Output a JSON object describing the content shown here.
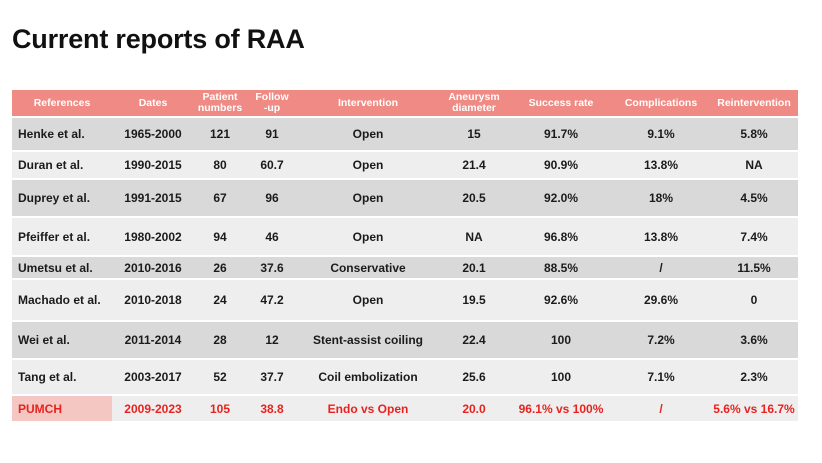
{
  "slide": {
    "title": "Current reports of RAA"
  },
  "table": {
    "headers": [
      {
        "line1": "References",
        "line2": ""
      },
      {
        "line1": "Dates",
        "line2": ""
      },
      {
        "line1": "Patient",
        "line2": "numbers"
      },
      {
        "line1": "Follow",
        "line2": "-up"
      },
      {
        "line1": "Intervention",
        "line2": ""
      },
      {
        "line1": "Aneurysm",
        "line2": "diameter"
      },
      {
        "line1": "Success rate",
        "line2": ""
      },
      {
        "line1": "Complications",
        "line2": ""
      },
      {
        "line1": "Reintervention",
        "line2": ""
      }
    ],
    "rows": [
      {
        "reference": "Henke et al.",
        "dates": "1965-2000",
        "patients": "121",
        "followup": "91",
        "intervention": "Open",
        "diameter": "15",
        "success": "91.7%",
        "complications": "9.1%",
        "reintervention": "5.8%"
      },
      {
        "reference": "Duran et al.",
        "dates": "1990-2015",
        "patients": "80",
        "followup": "60.7",
        "intervention": "Open",
        "diameter": "21.4",
        "success": "90.9%",
        "complications": "13.8%",
        "reintervention": "NA"
      },
      {
        "reference": "Duprey et al.",
        "dates": "1991-2015",
        "patients": "67",
        "followup": "96",
        "intervention": "Open",
        "diameter": "20.5",
        "success": "92.0%",
        "complications": "18%",
        "reintervention": "4.5%"
      },
      {
        "reference": "Pfeiffer et al.",
        "dates": "1980-2002",
        "patients": "94",
        "followup": "46",
        "intervention": "Open",
        "diameter": "NA",
        "success": "96.8%",
        "complications": "13.8%",
        "reintervention": "7.4%"
      },
      {
        "reference": "Umetsu et al.",
        "dates": "2010-2016",
        "patients": "26",
        "followup": "37.6",
        "intervention": "Conservative",
        "diameter": "20.1",
        "success": "88.5%",
        "complications": "/",
        "reintervention": "11.5%"
      },
      {
        "reference": "Machado et al.",
        "dates": "2010-2018",
        "patients": "24",
        "followup": "47.2",
        "intervention": "Open",
        "diameter": "19.5",
        "success": "92.6%",
        "complications": "29.6%",
        "reintervention": "0"
      },
      {
        "reference": "Wei et al.",
        "dates": "2011-2014",
        "patients": "28",
        "followup": "12",
        "intervention": "Stent-assist coiling",
        "diameter": "22.4",
        "success": "100",
        "complications": "7.2%",
        "reintervention": "3.6%"
      },
      {
        "reference": "Tang et al.",
        "dates": "2003-2017",
        "patients": "52",
        "followup": "37.7",
        "intervention": "Coil embolization",
        "diameter": "25.6",
        "success": "100",
        "complications": "7.1%",
        "reintervention": "2.3%"
      },
      {
        "reference": "PUMCH",
        "dates": "2009-2023",
        "patients": "105",
        "followup": "38.8",
        "intervention": "Endo vs Open",
        "diameter": "20.0",
        "success": "96.1% vs 100%",
        "complications": "/",
        "reintervention": "5.6% vs 16.7%"
      }
    ]
  },
  "colors": {
    "header_bg": "#ef8a84",
    "row_dark": "#d9d9d9",
    "row_light": "#eeeeee",
    "highlight_text": "#e8231f",
    "highlight_ref_bg": "#f4c7c2"
  }
}
